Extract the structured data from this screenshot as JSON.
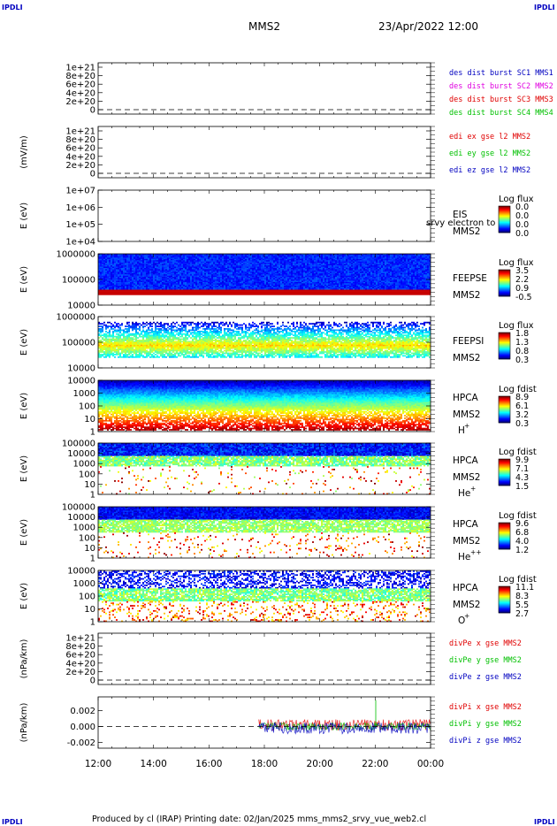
{
  "corner_tl": "IPDLI",
  "corner_tr": "IPDLI",
  "corner_bl": "IPDLI",
  "corner_br": "IPDLI",
  "title": "MMS2",
  "date": "23/Apr/2022 12:00",
  "footer": "Produced by cl (IRAP)   Printing date: 02/Jan/2025   mms_mms2_srvy_vue_web2.cl",
  "colors": {
    "red": "#e00000",
    "green": "#00c000",
    "blue": "#0000c0",
    "magenta": "#e000e0",
    "axis": "#000000"
  },
  "chart_data": {
    "type": "multi-panel",
    "x_ticks": [
      "12:00",
      "14:00",
      "16:00",
      "18:00",
      "20:00",
      "22:00",
      "00:00"
    ],
    "x_range_hours": [
      12,
      24
    ],
    "panels": [
      {
        "id": "p1",
        "type": "line",
        "ylabel": "",
        "ticks": [
          "1e+21",
          "8e+20",
          "6e+20",
          "4e+20",
          "2e+20",
          "0"
        ],
        "legend": [
          {
            "text": "des dist burst SC1 MMS1",
            "color": "#0000c0"
          },
          {
            "text": "des dist burst SC2 MMS2",
            "color": "#e000e0"
          },
          {
            "text": "des dist burst SC3 MMS3",
            "color": "#e00000"
          },
          {
            "text": "des dist burst SC4 MMS4",
            "color": "#00c000"
          }
        ]
      },
      {
        "id": "p2",
        "type": "line",
        "ylabel": "(mV/m)",
        "ticks": [
          "1e+21",
          "8e+20",
          "6e+20",
          "4e+20",
          "2e+20",
          "0"
        ],
        "legend": [
          {
            "text": "edi ex gse l2 MMS2",
            "color": "#e00000"
          },
          {
            "text": "edi ey gse l2 MMS2",
            "color": "#00c000"
          },
          {
            "text": "edi ez gse l2 MMS2",
            "color": "#0000c0"
          }
        ]
      },
      {
        "id": "p3",
        "type": "heatmap",
        "ylabel": "E (eV)",
        "ticks": [
          "1e+07",
          "1e+06",
          "1e+05",
          "1e+04"
        ],
        "inst": [
          "EIS",
          "MMS2"
        ],
        "overlay": "srvy electron to",
        "cb_title": "Log flux",
        "cb": [
          "0.0",
          "0.0",
          "0.0",
          "0.0"
        ]
      },
      {
        "id": "p4",
        "type": "heatmap",
        "ylabel": "E (eV)",
        "ticks": [
          "1000000",
          "100000",
          "10000"
        ],
        "inst": [
          "FEEPSE",
          "MMS2"
        ],
        "cb_title": "Log flux",
        "cb": [
          "3.5",
          "2.2",
          "0.9",
          "-0.5"
        ]
      },
      {
        "id": "p5",
        "type": "heatmap",
        "ylabel": "E (eV)",
        "ticks": [
          "1000000",
          "100000",
          "10000"
        ],
        "inst": [
          "FEEPSI",
          "MMS2"
        ],
        "cb_title": "Log flux",
        "cb": [
          "1.8",
          "1.3",
          "0.8",
          "0.3"
        ]
      },
      {
        "id": "p6",
        "type": "heatmap",
        "ylabel": "E (eV)",
        "ticks": [
          "10000",
          "1000",
          "100",
          "10",
          "1"
        ],
        "inst": [
          "HPCA",
          "MMS2"
        ],
        "species": "H",
        "charge": "+",
        "cb_title": "Log fdist",
        "cb": [
          "8.9",
          "6.1",
          "3.2",
          "0.3"
        ]
      },
      {
        "id": "p7",
        "type": "heatmap",
        "ylabel": "E (eV)",
        "ticks": [
          "100000",
          "10000",
          "1000",
          "100",
          "10",
          "1"
        ],
        "inst": [
          "HPCA",
          "MMS2"
        ],
        "species": "He",
        "charge": "+",
        "cb_title": "Log fdist",
        "cb": [
          "9.9",
          "7.1",
          "4.3",
          "1.5"
        ]
      },
      {
        "id": "p8",
        "type": "heatmap",
        "ylabel": "E (eV)",
        "ticks": [
          "100000",
          "10000",
          "1000",
          "100",
          "10",
          "1"
        ],
        "inst": [
          "HPCA",
          "MMS2"
        ],
        "species": "He",
        "charge": "++",
        "cb_title": "Log fdist",
        "cb": [
          "9.6",
          "6.8",
          "4.0",
          "1.2"
        ]
      },
      {
        "id": "p9",
        "type": "heatmap",
        "ylabel": "E (eV)",
        "ticks": [
          "10000",
          "1000",
          "100",
          "10",
          "1"
        ],
        "inst": [
          "HPCA",
          "MMS2"
        ],
        "species": "O",
        "charge": "+",
        "cb_title": "Log fdist",
        "cb": [
          "11.1",
          "8.3",
          "5.5",
          "2.7"
        ]
      },
      {
        "id": "p10",
        "type": "line",
        "ylabel": "(nPa/km)",
        "ticks": [
          "1e+21",
          "8e+20",
          "6e+20",
          "4e+20",
          "2e+20",
          "0"
        ],
        "legend": [
          {
            "text": "divPe x gse MMS2",
            "color": "#e00000"
          },
          {
            "text": "divPe y gse MMS2",
            "color": "#00c000"
          },
          {
            "text": "divPe z gse MMS2",
            "color": "#0000c0"
          }
        ]
      },
      {
        "id": "p11",
        "type": "line",
        "ylabel": "(nPa/km)",
        "ticks": [
          "0.002",
          "0.000",
          "-0.002"
        ],
        "ylim": [
          -0.0027,
          0.0037
        ],
        "legend": [
          {
            "text": "divPi x gse MMS2",
            "color": "#e00000"
          },
          {
            "text": "divPi y gse MMS2",
            "color": "#00c000"
          },
          {
            "text": "divPi z gse MMS2",
            "color": "#0000c0"
          }
        ],
        "data_start_hour": 17.8,
        "series": [
          {
            "name": "divPi x gse MMS2",
            "color": "#e00000",
            "level": 0.0002,
            "spread": 0.0007
          },
          {
            "name": "divPi y gse MMS2",
            "color": "#00c000",
            "level": 0.0,
            "spread": 0.0005
          },
          {
            "name": "divPi z gse MMS2",
            "color": "#0000c0",
            "level": -0.0002,
            "spread": 0.0007
          }
        ]
      }
    ]
  }
}
